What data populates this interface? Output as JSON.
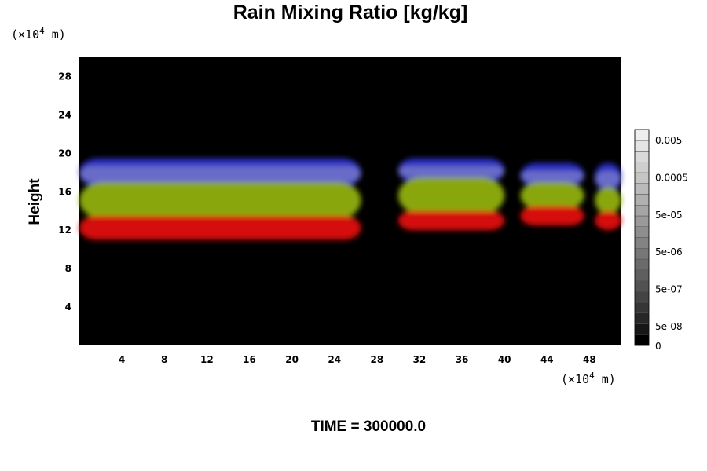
{
  "chart_data": {
    "type": "heatmap",
    "title": "Rain Mixing Ratio [kg/kg]",
    "ylabel": "Height",
    "xlabel": "",
    "x_unit_prefix": "(×10",
    "x_unit_exp": "4",
    "x_unit_suffix": " m)",
    "y_unit_prefix": "(×10",
    "y_unit_exp": "4",
    "y_unit_suffix": " m)",
    "xlim": [
      0,
      51
    ],
    "ylim": [
      0,
      30
    ],
    "x_ticks": [
      "4",
      "8",
      "12",
      "16",
      "20",
      "24",
      "28",
      "32",
      "36",
      "40",
      "44",
      "48"
    ],
    "y_ticks": [
      "4",
      "8",
      "12",
      "16",
      "20",
      "24",
      "28"
    ],
    "background_color": "#000000",
    "layer_colors": {
      "top": "#2a2ec8",
      "upper_mid": "#b8b8d8",
      "mid": "#90b010",
      "bottom": "#e01010"
    },
    "cells": [
      {
        "name": "left-band",
        "x_start": 0,
        "x_end": 26.5,
        "bottom": 11.0,
        "red_top": 13.5,
        "green_top": 17.0,
        "blue_top": 19.5
      },
      {
        "name": "center-cell",
        "x_start": 30,
        "x_end": 40,
        "bottom": 12.0,
        "red_top": 14.0,
        "green_top": 17.5,
        "blue_top": 19.5
      },
      {
        "name": "right-cell",
        "x_start": 41.5,
        "x_end": 47.5,
        "bottom": 12.5,
        "red_top": 14.5,
        "green_top": 17.0,
        "blue_top": 19.0
      },
      {
        "name": "far-right-cell",
        "x_start": 48.5,
        "x_end": 51,
        "bottom": 12.0,
        "red_top": 14.0,
        "green_top": 16.5,
        "blue_top": 19.0
      }
    ],
    "colorbar": {
      "labels": [
        "0.005",
        "0.0005",
        "5e-05",
        "5e-06",
        "5e-07",
        "5e-08",
        "0"
      ],
      "levels": 20,
      "color_low": "#000000",
      "color_high": "#eeeeee"
    },
    "annotation": "TIME = 300000.0"
  }
}
